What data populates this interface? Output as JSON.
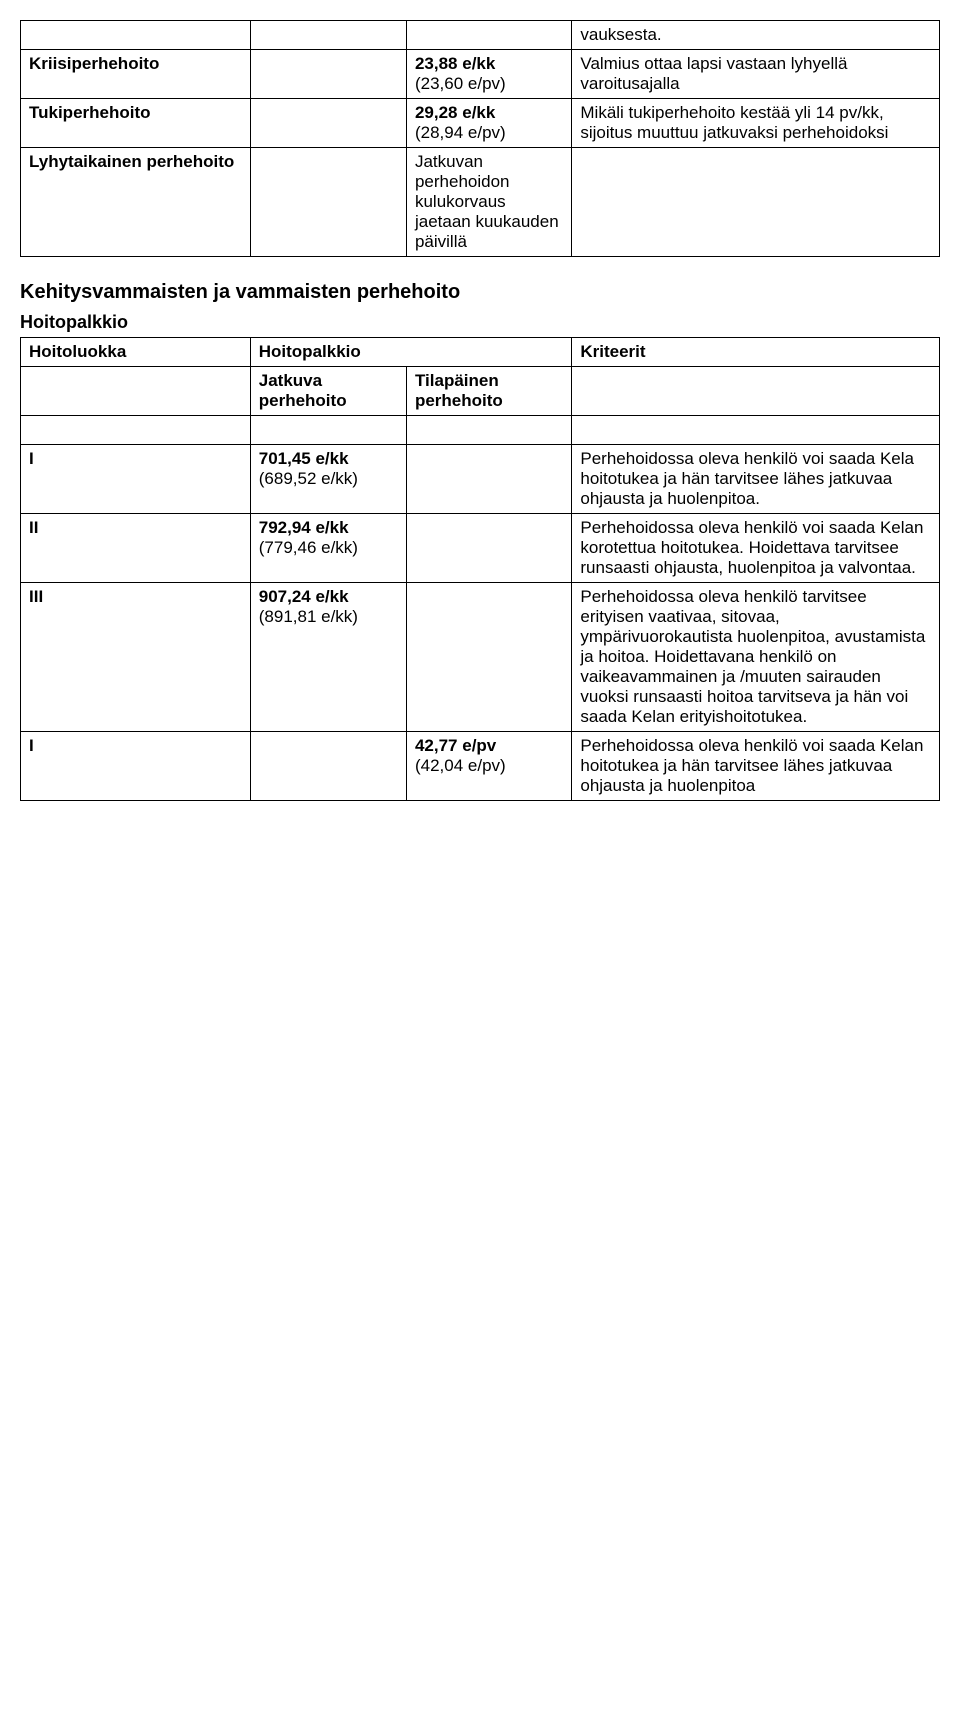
{
  "table1": {
    "rows": [
      {
        "c1": "",
        "c2": "",
        "c3": "",
        "c4": "vauksesta."
      },
      {
        "c1": "Kriisiperhehoito",
        "c1_bold": true,
        "c2": "",
        "c3": "23,88 e/kk\n(23,60 e/pv)",
        "c3_bold_first": true,
        "c4": "Valmius ottaa lapsi vastaan lyhyellä varoitusajalla"
      },
      {
        "c1": "Tukiperhehoito",
        "c1_bold": true,
        "c2": "",
        "c3": "29,28 e/kk\n(28,94 e/pv)",
        "c3_bold_first": true,
        "c4": "Mikäli tukiperhehoito kestää yli 14 pv/kk, sijoitus muuttuu jatkuvaksi perhehoidoksi"
      },
      {
        "c1": "Lyhytaikainen perhehoito",
        "c1_bold": true,
        "c2": "",
        "c3": "Jatkuvan perhehoidon kulukorvaus jaetaan kuukauden päivillä",
        "c4": ""
      }
    ]
  },
  "section_heading": "Kehitysvammaisten ja vammaisten perhehoito",
  "sub_heading": "Hoitopalkkio",
  "table2": {
    "header": {
      "c1": "Hoitoluokka",
      "c2": "Hoitopalkkio",
      "c4": "Kriteerit"
    },
    "subheader": {
      "c1": "",
      "c2": "Jatkuva perhehoito",
      "c3": "Tilapäinen perhehoito",
      "c4": ""
    },
    "rows": [
      {
        "c1": "I",
        "c2": "701,45 e/kk\n(689,52 e/kk)",
        "c2_bold_first": true,
        "c3": "",
        "c4": "Perhehoidossa oleva henkilö voi saada Kela hoitotukea ja hän tarvitsee lähes jatkuvaa ohjausta ja huolenpitoa."
      },
      {
        "c1": "II",
        "c2": "792,94 e/kk\n(779,46 e/kk)",
        "c2_bold_first": true,
        "c3": "",
        "c4": "Perhehoidossa oleva henkilö voi saada Kelan korotettua hoitotukea. Hoidettava tarvitsee runsaasti ohjausta, huolenpitoa ja valvontaa."
      },
      {
        "c1": "III",
        "c2": "907,24 e/kk\n(891,81 e/kk)",
        "c2_bold_first": true,
        "c3": "",
        "c4": "Perhehoidossa oleva henkilö tarvitsee erityisen vaativaa, sitovaa, ympärivuorokautista huolenpitoa, avustamista ja hoitoa. Hoidettavana henkilö on vaikeavammainen ja /muuten sairauden vuoksi runsaasti hoitoa tarvitseva ja hän voi saada Kelan erityishoitotukea."
      },
      {
        "c1": "I",
        "c2": "",
        "c3": "42,77 e/pv\n(42,04 e/pv)",
        "c3_bold_first": true,
        "c4": "Perhehoidossa oleva henkilö voi saada Kelan hoitotukea ja hän tarvitsee lähes jatkuvaa ohjausta ja huolenpitoa"
      }
    ]
  }
}
